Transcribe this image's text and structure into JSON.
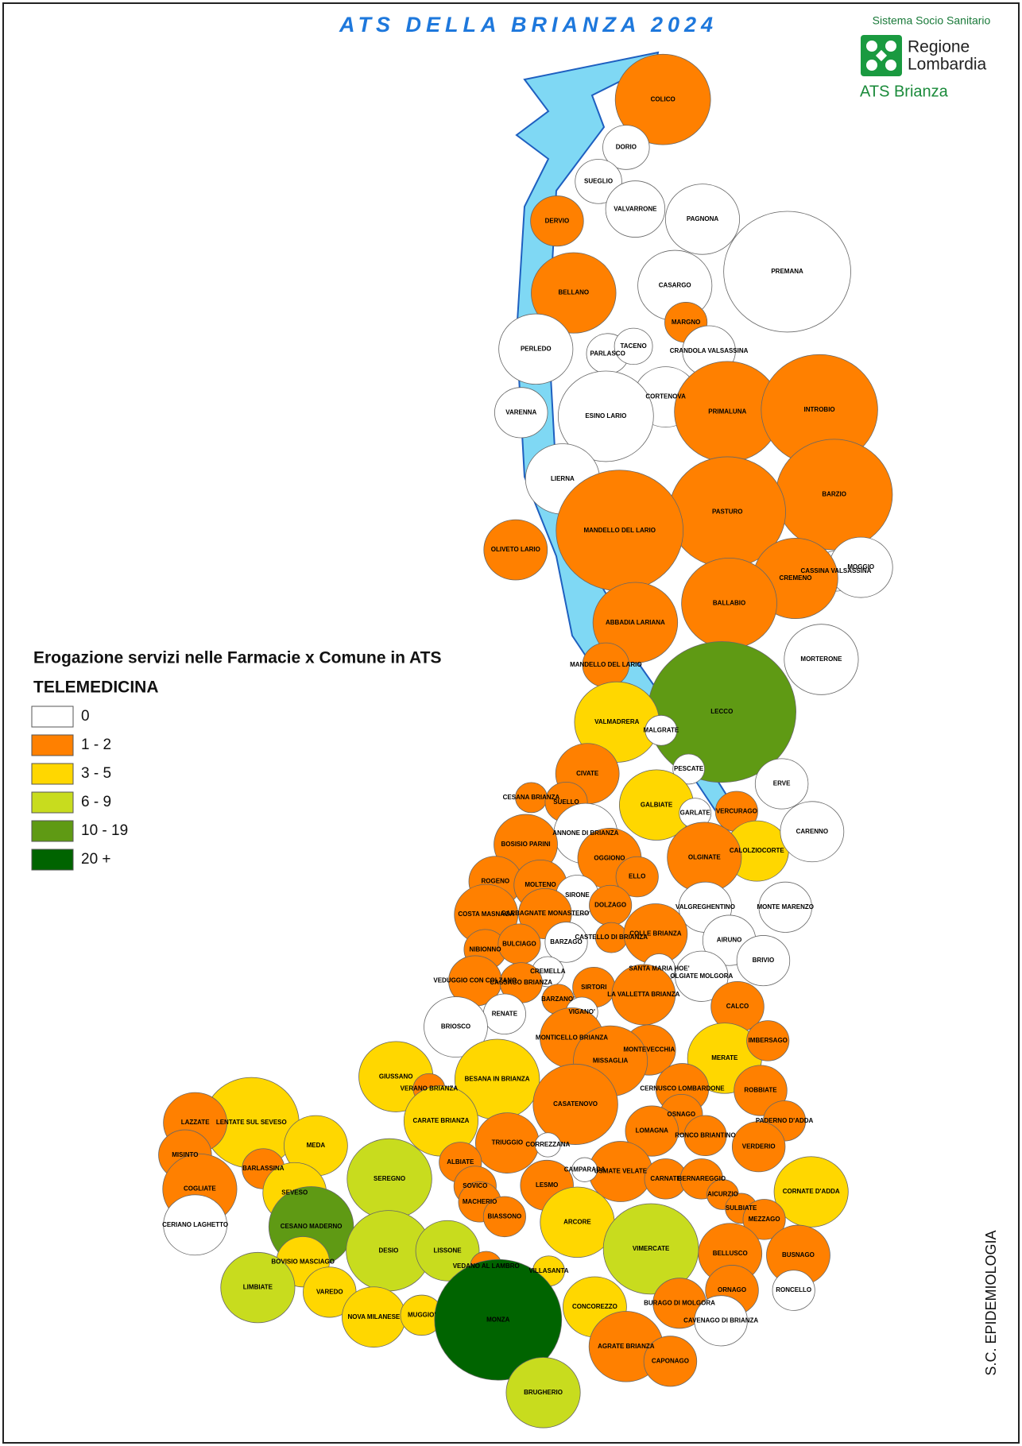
{
  "header": {
    "title": "ATS DELLA BRIANZA 2024",
    "logo_top": "Sistema Socio Sanitario",
    "logo_name_1": "Regione",
    "logo_name_2": "Lombardia",
    "logo_bottom": "ATS Brianza"
  },
  "legend": {
    "title": "Erogazione servizi nelle Farmacie x Comune in ATS",
    "subtitle": "TELEMEDICINA",
    "items": [
      {
        "label": "0",
        "color": "#ffffff"
      },
      {
        "label": "1 - 2",
        "color": "#ff8000"
      },
      {
        "label": "3 - 5",
        "color": "#ffd700"
      },
      {
        "label": "6 - 9",
        "color": "#c8dc1e"
      },
      {
        "label": "10 - 19",
        "color": "#5f9a14"
      },
      {
        "label": "20 +",
        "color": "#006400"
      }
    ]
  },
  "footer": {
    "credit": "S.C. EPIDEMIOLOGIA"
  },
  "municipalities": [
    {
      "name": "COLICO",
      "class": "1 - 2"
    },
    {
      "name": "DORIO",
      "class": "0"
    },
    {
      "name": "SUEGLIO",
      "class": "0"
    },
    {
      "name": "VALVARRONE",
      "class": "0"
    },
    {
      "name": "DERVIO",
      "class": "1 - 2"
    },
    {
      "name": "PAGNONA",
      "class": "0"
    },
    {
      "name": "PREMANA",
      "class": "0"
    },
    {
      "name": "CASARGO",
      "class": "0"
    },
    {
      "name": "BELLANO",
      "class": "1 - 2"
    },
    {
      "name": "MARGNO",
      "class": "1 - 2"
    },
    {
      "name": "PERLEDO",
      "class": "0"
    },
    {
      "name": "PARLASCO",
      "class": "0"
    },
    {
      "name": "TACENO",
      "class": "0"
    },
    {
      "name": "CRANDOLA VALSASSINA",
      "class": "0"
    },
    {
      "name": "CORTENOVA",
      "class": "0"
    },
    {
      "name": "VARENNA",
      "class": "0"
    },
    {
      "name": "ESINO LARIO",
      "class": "0"
    },
    {
      "name": "PRIMALUNA",
      "class": "1 - 2"
    },
    {
      "name": "INTROBIO",
      "class": "1 - 2"
    },
    {
      "name": "LIERNA",
      "class": "0"
    },
    {
      "name": "BARZIO",
      "class": "1 - 2"
    },
    {
      "name": "PASTURO",
      "class": "1 - 2"
    },
    {
      "name": "MANDELLO DEL LARIO",
      "class": "1 - 2"
    },
    {
      "name": "OLIVETO LARIO",
      "class": "1 - 2"
    },
    {
      "name": "CASSINA VALSASSINA",
      "class": "0"
    },
    {
      "name": "MOGGIO",
      "class": "0"
    },
    {
      "name": "CREMENO",
      "class": "1 - 2"
    },
    {
      "name": "BALLABIO",
      "class": "1 - 2"
    },
    {
      "name": "ABBADIA LARIANA",
      "class": "1 - 2"
    },
    {
      "name": "MORTERONE",
      "class": "0"
    },
    {
      "name": "MANDELLO DEL LARIO",
      "class": "1 - 2"
    },
    {
      "name": "LECCO",
      "class": "10 - 19"
    },
    {
      "name": "VALMADRERA",
      "class": "3 - 5"
    },
    {
      "name": "MALGRATE",
      "class": "0"
    },
    {
      "name": "CIVATE",
      "class": "1 - 2"
    },
    {
      "name": "PESCATE",
      "class": "0"
    },
    {
      "name": "CESANA BRIANZA",
      "class": "1 - 2"
    },
    {
      "name": "SUELLO",
      "class": "1 - 2"
    },
    {
      "name": "GALBIATE",
      "class": "3 - 5"
    },
    {
      "name": "GARLATE",
      "class": "0"
    },
    {
      "name": "ERVE",
      "class": "0"
    },
    {
      "name": "VERCURAGO",
      "class": "1 - 2"
    },
    {
      "name": "ANNONE DI BRIANZA",
      "class": "0"
    },
    {
      "name": "CALOLZIOCORTE",
      "class": "3 - 5"
    },
    {
      "name": "CARENNO",
      "class": "0"
    },
    {
      "name": "BOSISIO PARINI",
      "class": "1 - 2"
    },
    {
      "name": "OGGIONO",
      "class": "1 - 2"
    },
    {
      "name": "OLGINATE",
      "class": "1 - 2"
    },
    {
      "name": "ROGENO",
      "class": "1 - 2"
    },
    {
      "name": "MOLTENO",
      "class": "1 - 2"
    },
    {
      "name": "ELLO",
      "class": "1 - 2"
    },
    {
      "name": "VALGREGHENTINO",
      "class": "0"
    },
    {
      "name": "SIRONE",
      "class": "0"
    },
    {
      "name": "MONTE MARENZO",
      "class": "0"
    },
    {
      "name": "DOLZAGO",
      "class": "1 - 2"
    },
    {
      "name": "GARBAGNATE MONASTERO",
      "class": "1 - 2"
    },
    {
      "name": "COSTA MASNAGA",
      "class": "1 - 2"
    },
    {
      "name": "CASTELLO DI BRIANZA",
      "class": "1 - 2"
    },
    {
      "name": "COLLE BRIANZA",
      "class": "1 - 2"
    },
    {
      "name": "AIRUNO",
      "class": "0"
    },
    {
      "name": "BARZAGO",
      "class": "0"
    },
    {
      "name": "NIBIONNO",
      "class": "1 - 2"
    },
    {
      "name": "BULCIAGO",
      "class": "1 - 2"
    },
    {
      "name": "BRIVIO",
      "class": "0"
    },
    {
      "name": "CREMELLA",
      "class": "0"
    },
    {
      "name": "SANTA MARIA HOE'",
      "class": "0"
    },
    {
      "name": "OLGIATE MOLGORA",
      "class": "0"
    },
    {
      "name": "VEDUGGIO CON COLZANO",
      "class": "1 - 2"
    },
    {
      "name": "CASSAGO BRIANZA",
      "class": "1 - 2"
    },
    {
      "name": "SIRTORI",
      "class": "1 - 2"
    },
    {
      "name": "BARZANO'",
      "class": "1 - 2"
    },
    {
      "name": "LA VALLETTA BRIANZA",
      "class": "1 - 2"
    },
    {
      "name": "CALCO",
      "class": "1 - 2"
    },
    {
      "name": "RENATE",
      "class": "0"
    },
    {
      "name": "VIGANO'",
      "class": "0"
    },
    {
      "name": "BRIOSCO",
      "class": "0"
    },
    {
      "name": "MONTICELLO BRIANZA",
      "class": "1 - 2"
    },
    {
      "name": "MERATE",
      "class": "3 - 5"
    },
    {
      "name": "IMBERSAGO",
      "class": "1 - 2"
    },
    {
      "name": "MONTEVECCHIA",
      "class": "1 - 2"
    },
    {
      "name": "MISSAGLIA",
      "class": "1 - 2"
    },
    {
      "name": "GIUSSANO",
      "class": "3 - 5"
    },
    {
      "name": "VERANO BRIANZA",
      "class": "1 - 2"
    },
    {
      "name": "BESANA IN BRIANZA",
      "class": "3 - 5"
    },
    {
      "name": "CERNUSCO LOMBARDONE",
      "class": "1 - 2"
    },
    {
      "name": "ROBBIATE",
      "class": "1 - 2"
    },
    {
      "name": "LENTATE SUL SEVESO",
      "class": "3 - 5"
    },
    {
      "name": "LAZZATE",
      "class": "1 - 2"
    },
    {
      "name": "CASATENOVO",
      "class": "1 - 2"
    },
    {
      "name": "CARATE BRIANZA",
      "class": "3 - 5"
    },
    {
      "name": "OSNAGO",
      "class": "1 - 2"
    },
    {
      "name": "PADERNO D'ADDA",
      "class": "1 - 2"
    },
    {
      "name": "TRIUGGIO",
      "class": "1 - 2"
    },
    {
      "name": "MEDA",
      "class": "3 - 5"
    },
    {
      "name": "CORREZZANA",
      "class": "0"
    },
    {
      "name": "LOMAGNA",
      "class": "1 - 2"
    },
    {
      "name": "RONCO BRIANTINO",
      "class": "1 - 2"
    },
    {
      "name": "VERDERIO",
      "class": "1 - 2"
    },
    {
      "name": "MISINTO",
      "class": "1 - 2"
    },
    {
      "name": "SEREGNO",
      "class": "6 - 9"
    },
    {
      "name": "USMATE VELATE",
      "class": "1 - 2"
    },
    {
      "name": "ALBIATE",
      "class": "1 - 2"
    },
    {
      "name": "CAMPARADA",
      "class": "0"
    },
    {
      "name": "BARLASSINA",
      "class": "1 - 2"
    },
    {
      "name": "CARNATE",
      "class": "1 - 2"
    },
    {
      "name": "BERNAREGGIO",
      "class": "1 - 2"
    },
    {
      "name": "LESMO",
      "class": "1 - 2"
    },
    {
      "name": "SOVICO",
      "class": "1 - 2"
    },
    {
      "name": "COGLIATE",
      "class": "1 - 2"
    },
    {
      "name": "SEVESO",
      "class": "3 - 5"
    },
    {
      "name": "CORNATE D'ADDA",
      "class": "3 - 5"
    },
    {
      "name": "AICURZIO",
      "class": "1 - 2"
    },
    {
      "name": "SULBIATE",
      "class": "1 - 2"
    },
    {
      "name": "MACHERIO",
      "class": "1 - 2"
    },
    {
      "name": "MEZZAGO",
      "class": "1 - 2"
    },
    {
      "name": "CERIANO LAGHETTO",
      "class": "0"
    },
    {
      "name": "CESANO MADERNO",
      "class": "10 - 19"
    },
    {
      "name": "BIASSONO",
      "class": "1 - 2"
    },
    {
      "name": "ARCORE",
      "class": "3 - 5"
    },
    {
      "name": "DESIO",
      "class": "6 - 9"
    },
    {
      "name": "LISSONE",
      "class": "6 - 9"
    },
    {
      "name": "VIMERCATE",
      "class": "6 - 9"
    },
    {
      "name": "BOVISIO MASCIAGO",
      "class": "3 - 5"
    },
    {
      "name": "VEDANO AL LAMBRO",
      "class": "1 - 2"
    },
    {
      "name": "BELLUSCO",
      "class": "1 - 2"
    },
    {
      "name": "BUSNAGO",
      "class": "1 - 2"
    },
    {
      "name": "LIMBIATE",
      "class": "6 - 9"
    },
    {
      "name": "VILLASANTA",
      "class": "3 - 5"
    },
    {
      "name": "VAREDO",
      "class": "3 - 5"
    },
    {
      "name": "ORNAGO",
      "class": "1 - 2"
    },
    {
      "name": "RONCELLO",
      "class": "0"
    },
    {
      "name": "CONCOREZZO",
      "class": "3 - 5"
    },
    {
      "name": "BURAGO DI MOLGORA",
      "class": "1 - 2"
    },
    {
      "name": "NOVA MILANESE",
      "class": "3 - 5"
    },
    {
      "name": "MUGGIO'",
      "class": "3 - 5"
    },
    {
      "name": "CAVENAGO DI BRIANZA",
      "class": "0"
    },
    {
      "name": "MONZA",
      "class": "20 +"
    },
    {
      "name": "AGRATE BRIANZA",
      "class": "1 - 2"
    },
    {
      "name": "CAPONAGO",
      "class": "1 - 2"
    },
    {
      "name": "BRUGHERIO",
      "class": "6 - 9"
    }
  ]
}
